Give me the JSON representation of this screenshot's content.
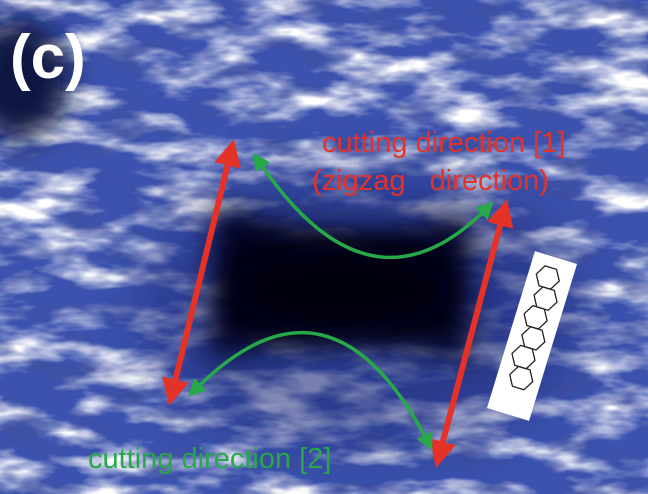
{
  "panel_label": "(c)",
  "annotations": {
    "cutting_direction_1": "cutting direction [1]",
    "zigzag_direction": "(zigzag   direction)",
    "cutting_direction_2": "cutting direction [2]"
  }
}
